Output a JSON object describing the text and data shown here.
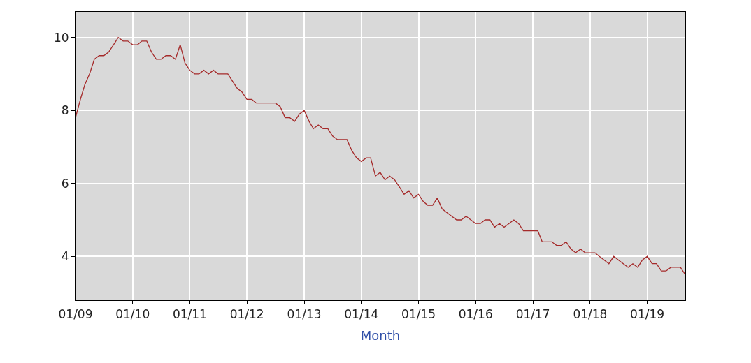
{
  "chart_data": {
    "type": "line",
    "xlabel": "Month",
    "x": [
      "2009-01",
      "2009-02",
      "2009-03",
      "2009-04",
      "2009-05",
      "2009-06",
      "2009-07",
      "2009-08",
      "2009-09",
      "2009-10",
      "2009-11",
      "2009-12",
      "2010-01",
      "2010-02",
      "2010-03",
      "2010-04",
      "2010-05",
      "2010-06",
      "2010-07",
      "2010-08",
      "2010-09",
      "2010-10",
      "2010-11",
      "2010-12",
      "2011-01",
      "2011-02",
      "2011-03",
      "2011-04",
      "2011-05",
      "2011-06",
      "2011-07",
      "2011-08",
      "2011-09",
      "2011-10",
      "2011-11",
      "2011-12",
      "2012-01",
      "2012-02",
      "2012-03",
      "2012-04",
      "2012-05",
      "2012-06",
      "2012-07",
      "2012-08",
      "2012-09",
      "2012-10",
      "2012-11",
      "2012-12",
      "2013-01",
      "2013-02",
      "2013-03",
      "2013-04",
      "2013-05",
      "2013-06",
      "2013-07",
      "2013-08",
      "2013-09",
      "2013-10",
      "2013-11",
      "2013-12",
      "2014-01",
      "2014-02",
      "2014-03",
      "2014-04",
      "2014-05",
      "2014-06",
      "2014-07",
      "2014-08",
      "2014-09",
      "2014-10",
      "2014-11",
      "2014-12",
      "2015-01",
      "2015-02",
      "2015-03",
      "2015-04",
      "2015-05",
      "2015-06",
      "2015-07",
      "2015-08",
      "2015-09",
      "2015-10",
      "2015-11",
      "2015-12",
      "2016-01",
      "2016-02",
      "2016-03",
      "2016-04",
      "2016-05",
      "2016-06",
      "2016-07",
      "2016-08",
      "2016-09",
      "2016-10",
      "2016-11",
      "2016-12",
      "2017-01",
      "2017-02",
      "2017-03",
      "2017-04",
      "2017-05",
      "2017-06",
      "2017-07",
      "2017-08",
      "2017-09",
      "2017-10",
      "2017-11",
      "2017-12",
      "2018-01",
      "2018-02",
      "2018-03",
      "2018-04",
      "2018-05",
      "2018-06",
      "2018-07",
      "2018-08",
      "2018-09",
      "2018-10",
      "2018-11",
      "2018-12",
      "2019-01",
      "2019-02",
      "2019-03",
      "2019-04",
      "2019-05",
      "2019-06",
      "2019-07",
      "2019-08",
      "2019-09"
    ],
    "series": [
      {
        "color": "#a52a2a",
        "values": [
          7.8,
          8.3,
          8.7,
          9.0,
          9.4,
          9.5,
          9.5,
          9.6,
          9.8,
          10.0,
          9.9,
          9.9,
          9.8,
          9.8,
          9.9,
          9.9,
          9.6,
          9.4,
          9.4,
          9.5,
          9.5,
          9.4,
          9.8,
          9.3,
          9.1,
          9.0,
          9.0,
          9.1,
          9.0,
          9.1,
          9.0,
          9.0,
          9.0,
          8.8,
          8.6,
          8.5,
          8.3,
          8.3,
          8.2,
          8.2,
          8.2,
          8.2,
          8.2,
          8.1,
          7.8,
          7.8,
          7.7,
          7.9,
          8.0,
          7.7,
          7.5,
          7.6,
          7.5,
          7.5,
          7.3,
          7.2,
          7.2,
          7.2,
          6.9,
          6.7,
          6.6,
          6.7,
          6.7,
          6.2,
          6.3,
          6.1,
          6.2,
          6.1,
          5.9,
          5.7,
          5.8,
          5.6,
          5.7,
          5.5,
          5.4,
          5.4,
          5.6,
          5.3,
          5.2,
          5.1,
          5.0,
          5.0,
          5.1,
          5.0,
          4.9,
          4.9,
          5.0,
          5.0,
          4.8,
          4.9,
          4.8,
          4.9,
          5.0,
          4.9,
          4.7,
          4.7,
          4.7,
          4.7,
          4.4,
          4.4,
          4.4,
          4.3,
          4.3,
          4.4,
          4.2,
          4.1,
          4.2,
          4.1,
          4.1,
          4.1,
          4.0,
          3.9,
          3.8,
          4.0,
          3.9,
          3.8,
          3.7,
          3.8,
          3.7,
          3.9,
          4.0,
          3.8,
          3.8,
          3.6,
          3.6,
          3.7,
          3.7,
          3.7,
          3.5
        ]
      }
    ],
    "xlim": [
      "2009-01",
      "2019-09"
    ],
    "xticks": [
      {
        "value": "2009-01",
        "label": "01/09"
      },
      {
        "value": "2010-01",
        "label": "01/10"
      },
      {
        "value": "2011-01",
        "label": "01/11"
      },
      {
        "value": "2012-01",
        "label": "01/12"
      },
      {
        "value": "2013-01",
        "label": "01/13"
      },
      {
        "value": "2014-01",
        "label": "01/14"
      },
      {
        "value": "2015-01",
        "label": "01/15"
      },
      {
        "value": "2016-01",
        "label": "01/16"
      },
      {
        "value": "2017-01",
        "label": "01/17"
      },
      {
        "value": "2018-01",
        "label": "01/18"
      },
      {
        "value": "2019-01",
        "label": "01/19"
      }
    ],
    "ylim": [
      2.8,
      10.7
    ],
    "yticks": [
      4,
      6,
      8,
      10
    ],
    "grid": true,
    "line_style": "solid",
    "marker": "none"
  }
}
